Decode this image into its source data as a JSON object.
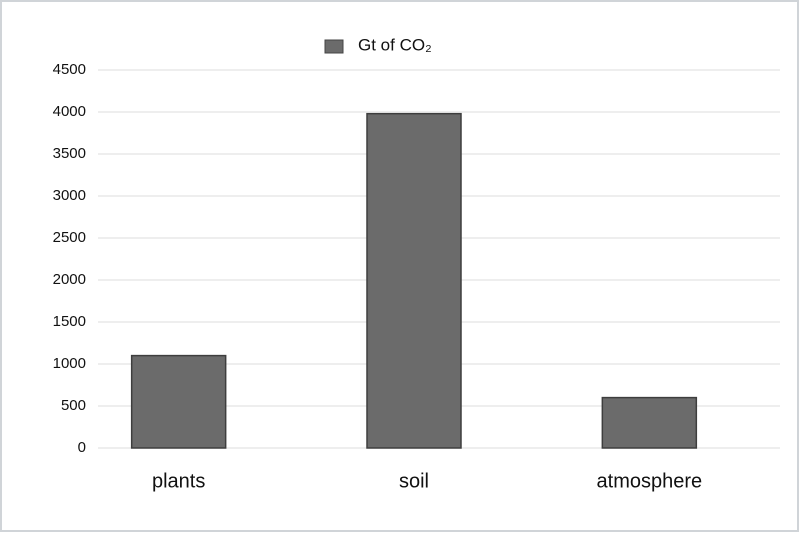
{
  "chart_data": {
    "type": "bar",
    "categories": [
      "plants",
      "soil",
      "atmosphere"
    ],
    "series": [
      {
        "name": "Gt of CO₂",
        "color": "#6b6b6b",
        "values": [
          1100,
          3980,
          600
        ]
      }
    ],
    "ylim": [
      0,
      4500
    ],
    "yticks": [
      0,
      500,
      1000,
      1500,
      2000,
      2500,
      3000,
      3500,
      4000,
      4500
    ],
    "grid": true,
    "legend": "top"
  }
}
